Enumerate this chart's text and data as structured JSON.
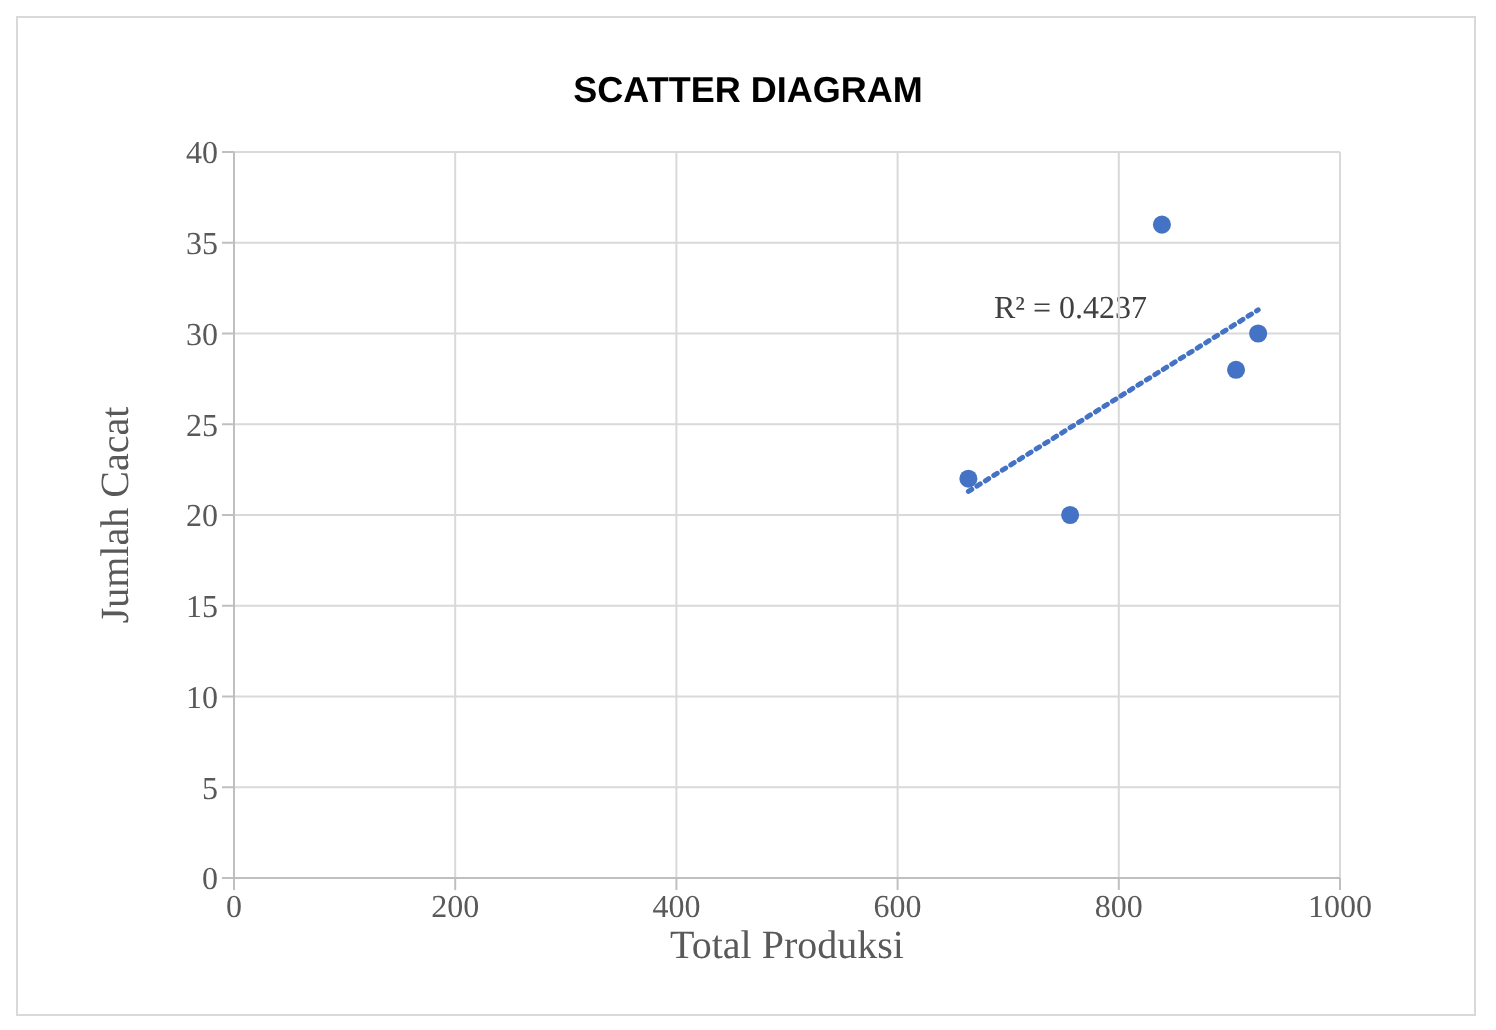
{
  "chart_data": {
    "type": "scatter",
    "title": "SCATTER DIAGRAM",
    "xlabel": "Total Produksi",
    "ylabel": "Jumlah Cacat",
    "x": [
      664,
      756,
      839,
      906,
      926
    ],
    "series": [
      {
        "color": "#4472c4",
        "values": [
          22,
          20,
          36,
          28,
          30
        ],
        "marker": "circle"
      },
      {
        "type": "line",
        "color": "#4472c4",
        "x": [
          664,
          926
        ],
        "values": [
          21.3,
          31.3
        ],
        "line_style": "dotted",
        "marker": "none"
      }
    ],
    "annotations": [
      "R² = 0.4237"
    ],
    "xlim": [
      0,
      1000
    ],
    "xticks": [
      0,
      200,
      400,
      600,
      800,
      1000
    ],
    "ylim": [
      0,
      40
    ],
    "yticks": [
      0,
      5,
      10,
      15,
      20,
      25,
      30,
      35,
      40
    ],
    "grid": true
  }
}
